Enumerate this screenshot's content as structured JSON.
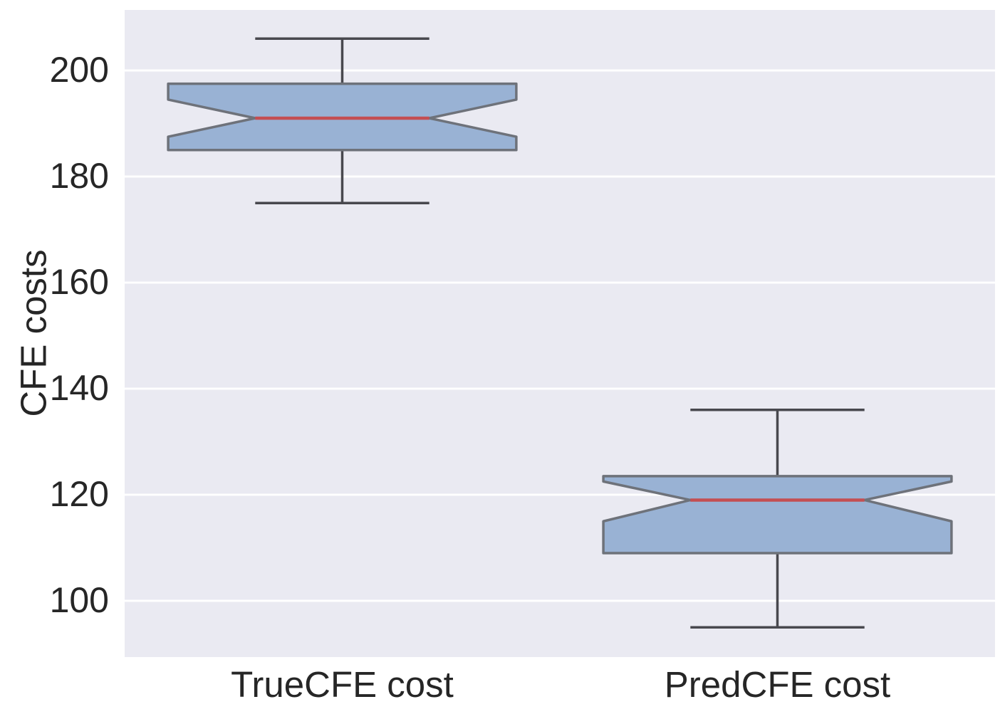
{
  "figure": {
    "title": "",
    "background_color": "#ffffff",
    "plot_background_color": "#eaeaf2",
    "grid_color": "#ffffff",
    "text_color": "#262626"
  },
  "chart_data": {
    "type": "boxplot",
    "notched": true,
    "title": "",
    "xlabel": "",
    "ylabel": "CFE costs",
    "categories": [
      "TrueCFE cost",
      "PredCFE cost"
    ],
    "yticks": [
      100,
      120,
      140,
      160,
      180,
      200
    ],
    "ylim": [
      89.4,
      211.4
    ],
    "grid": true,
    "legend": null,
    "boxes": [
      {
        "label": "TrueCFE cost",
        "whislo": 175,
        "q1": 185,
        "med": 191,
        "q3": 197.5,
        "whishi": 206,
        "notch_lo": 187.5,
        "notch_hi": 194.5
      },
      {
        "label": "PredCFE cost",
        "whislo": 95,
        "q1": 109,
        "med": 119,
        "q3": 123.5,
        "whishi": 136,
        "notch_lo": 115,
        "notch_hi": 122.5
      }
    ],
    "colors": {
      "box_fill": "#99b2d4",
      "box_edge": "#6e727a",
      "whisker": "#48484e",
      "median": "#c44e52"
    },
    "box_width_fraction": 0.4,
    "cap_width_fraction": 0.2
  }
}
